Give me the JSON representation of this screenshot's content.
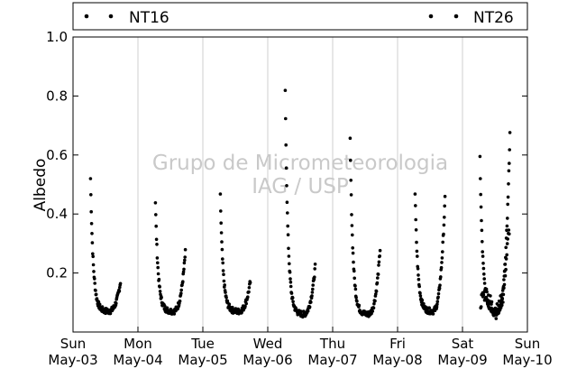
{
  "chart_data": {
    "type": "scatter",
    "ylabel": "Albedo",
    "xlabel": "",
    "ylim": [
      0.0,
      1.0
    ],
    "yticks": [
      0.2,
      0.4,
      0.6,
      0.8,
      1.0
    ],
    "xlim": [
      "2011-05-03",
      "2011-05-10"
    ],
    "xtick_labels": [
      {
        "day": "Sun",
        "date": "May-03"
      },
      {
        "day": "Mon",
        "date": "May-04"
      },
      {
        "day": "Tue",
        "date": "May-05"
      },
      {
        "day": "Wed",
        "date": "May-06"
      },
      {
        "day": "Thu",
        "date": "May-07"
      },
      {
        "day": "Fri",
        "date": "May-08"
      },
      {
        "day": "Sat",
        "date": "May-09"
      },
      {
        "day": "Sun",
        "date": "May-10"
      }
    ],
    "grid": "vertical",
    "legend_position": "top",
    "watermark": [
      "Grupo de Micrometeorologia",
      "IAG / USP"
    ],
    "series": [
      {
        "name": "NT16",
        "color": "#000000",
        "days": [
          "May-03",
          "May-04",
          "May-05",
          "May-06",
          "May-07",
          "May-08",
          "May-09"
        ]
      },
      {
        "name": "NT26",
        "color": "#000000",
        "days": [
          "May-09"
        ]
      }
    ],
    "daily_profiles": [
      {
        "day": "May-03",
        "morning_peak": 0.52,
        "minimum": 0.07,
        "evening_rise": 0.17
      },
      {
        "day": "May-04",
        "morning_peak": 0.44,
        "minimum": 0.07,
        "evening_rise": 0.27
      },
      {
        "day": "May-05",
        "morning_peak": 0.46,
        "minimum": 0.07,
        "evening_rise": 0.17
      },
      {
        "day": "May-06",
        "morning_peak": 0.81,
        "minimum": 0.06,
        "evening_rise": 0.22
      },
      {
        "day": "May-07",
        "morning_peak": 0.65,
        "minimum": 0.06,
        "evening_rise": 0.28
      },
      {
        "day": "May-08",
        "morning_peak": 0.47,
        "minimum": 0.07,
        "evening_rise": 0.45
      },
      {
        "day": "May-09",
        "morning_peak": 0.59,
        "minimum": 0.07,
        "evening_rise": 0.67
      }
    ]
  }
}
